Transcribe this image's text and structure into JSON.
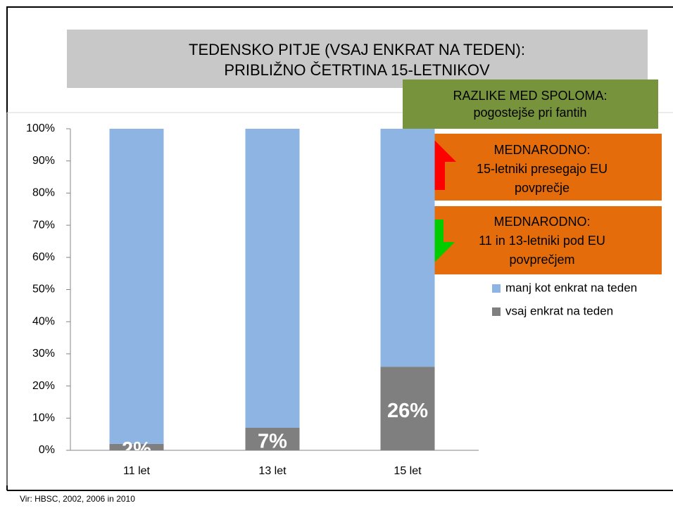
{
  "chart_data": {
    "type": "stacked_bar",
    "title": [
      "TEDENSKO PITJE (VSAJ ENKRAT NA TEDEN):",
      "PRIBLIŽNO ČETRTINA 15-LETNIKOV"
    ],
    "categories": [
      "11 let",
      "13 let",
      "15 let"
    ],
    "series": [
      {
        "name": "vsaj enkrat na teden",
        "color": "#7f7f7f",
        "values": [
          2,
          7,
          26
        ],
        "value_labels": [
          "2%",
          "7%",
          "26%"
        ]
      },
      {
        "name": "manj kot enkrat na teden",
        "color": "#8eb4e3",
        "values": [
          98,
          93,
          74
        ]
      }
    ],
    "ylim": [
      0,
      100
    ],
    "yticks": [
      {
        "value": 0,
        "label": "0%"
      },
      {
        "value": 10,
        "label": "10%"
      },
      {
        "value": 20,
        "label": "20%"
      },
      {
        "value": 30,
        "label": "30%"
      },
      {
        "value": 40,
        "label": "40%"
      },
      {
        "value": 50,
        "label": "50%"
      },
      {
        "value": 60,
        "label": "60%"
      },
      {
        "value": 70,
        "label": "70%"
      },
      {
        "value": 80,
        "label": "80%"
      },
      {
        "value": 90,
        "label": "90%"
      },
      {
        "value": 100,
        "label": "100%"
      }
    ],
    "annotations": [
      {
        "lines": [
          "RAZLIKE MED SPOLOMA:",
          "pogostejše pri fantih"
        ]
      },
      {
        "lines": [
          "MEDNARODNO:",
          "15-letniki presegajo EU",
          "povprečje"
        ]
      },
      {
        "lines": [
          "MEDNARODNO:",
          "11 in 13-letniki pod  EU",
          "povprečjem"
        ]
      }
    ],
    "source": "Vir: HBSC, 2002, 2006 in 2010"
  }
}
